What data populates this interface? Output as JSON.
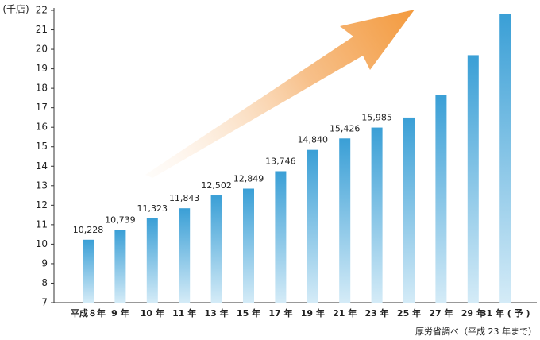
{
  "chart_data": {
    "type": "bar",
    "y_label": "(千店)",
    "source": "厚労省調べ（平成 23 年まで）",
    "categories": [
      "平成８年",
      "9 年",
      "10 年",
      "11 年",
      "13 年",
      "15 年",
      "17 年",
      "19 年",
      "21 年",
      "23 年",
      "25 年",
      "27 年",
      "29 年",
      "31 年 ( 予 )"
    ],
    "values": [
      10.228,
      10.739,
      11.323,
      11.843,
      12.502,
      12.849,
      13.746,
      14.84,
      15.426,
      15.985,
      16.5,
      17.65,
      19.7,
      21.8
    ],
    "value_labels": [
      "10,228",
      "10,739",
      "11,323",
      "11,843",
      "12,502",
      "12,849",
      "13,746",
      "14,840",
      "15,426",
      "15,985",
      null,
      null,
      null,
      null
    ],
    "color": "#3a9fd6",
    "ylim": [
      7,
      22
    ],
    "yticks": [
      7,
      8,
      9,
      10,
      11,
      12,
      13,
      14,
      15,
      16,
      17,
      18,
      19,
      20,
      21,
      22
    ]
  }
}
